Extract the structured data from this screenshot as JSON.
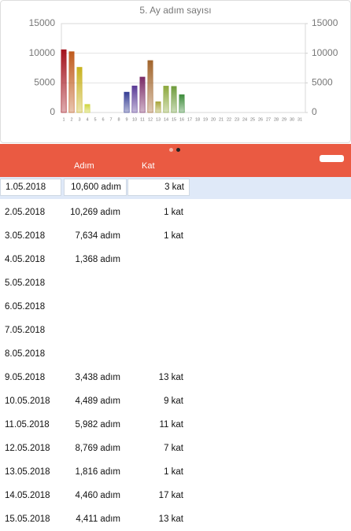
{
  "chart_data": {
    "type": "bar",
    "title": "5. Ay adım sayısı",
    "categories": [
      "1",
      "2",
      "3",
      "4",
      "5",
      "6",
      "7",
      "8",
      "9",
      "10",
      "11",
      "12",
      "13",
      "14",
      "15",
      "16",
      "17",
      "18",
      "19",
      "20",
      "21",
      "22",
      "23",
      "24",
      "25",
      "26",
      "27",
      "28",
      "29",
      "30",
      "31"
    ],
    "values": [
      10600,
      10269,
      7634,
      1368,
      null,
      null,
      null,
      null,
      3438,
      4489,
      5982,
      8769,
      1816,
      4460,
      4411,
      3000,
      null,
      null,
      null,
      null,
      null,
      null,
      null,
      null,
      null,
      null,
      null,
      null,
      null,
      null,
      null
    ],
    "colors": [
      "#a3121c",
      "#c05a1c",
      "#c8b21e",
      "#cfd43c",
      null,
      null,
      null,
      null,
      "#343c94",
      "#5a3a96",
      "#7b2c68",
      "#a2652c",
      "#a9a63c",
      "#8ca83c",
      "#6f9c3c",
      "#3d8c3a",
      null,
      null,
      null,
      null,
      null,
      null,
      null,
      null,
      null,
      null,
      null,
      null,
      null,
      null,
      null
    ],
    "ylim": [
      0,
      15000
    ],
    "yticks": [
      0,
      5000,
      10000,
      15000
    ],
    "y2lim": [
      0,
      15000
    ],
    "y2ticks": [
      0,
      5000,
      10000,
      15000
    ],
    "grid": true
  },
  "table": {
    "headers": [
      "Adım",
      "Kat"
    ],
    "rows": [
      {
        "date": "1.05.2018",
        "steps": "10,600 adım",
        "floors": "3 kat"
      },
      {
        "date": "2.05.2018",
        "steps": "10,269 adım",
        "floors": "1 kat"
      },
      {
        "date": "3.05.2018",
        "steps": "7,634 adım",
        "floors": "1 kat"
      },
      {
        "date": "4.05.2018",
        "steps": "1,368 adım"
      },
      {
        "date": "5.05.2018"
      },
      {
        "date": "6.05.2018"
      },
      {
        "date": "7.05.2018"
      },
      {
        "date": "8.05.2018"
      },
      {
        "date": "9.05.2018",
        "steps": "3,438 adım",
        "floors": "13 kat"
      },
      {
        "date": "10.05.2018",
        "steps": "4,489 adım",
        "floors": "9 kat"
      },
      {
        "date": "11.05.2018",
        "steps": "5,982 adım",
        "floors": "11 kat"
      },
      {
        "date": "12.05.2018",
        "steps": "8,769 adım",
        "floors": "7 kat"
      },
      {
        "date": "13.05.2018",
        "steps": "1,816 adım",
        "floors": "1 kat"
      },
      {
        "date": "14.05.2018",
        "steps": "4,460 adım",
        "floors": "17 kat"
      },
      {
        "date": "15.05.2018",
        "steps": "4,411 adım",
        "floors": "13 kat"
      }
    ]
  }
}
